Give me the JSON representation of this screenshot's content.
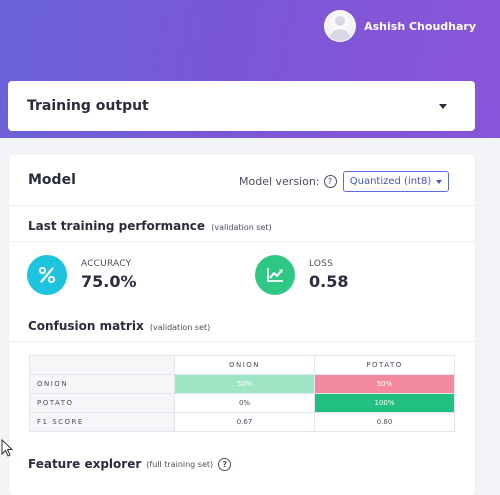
{
  "user": {
    "name": "Ashish Choudhary"
  },
  "training_output": {
    "title": "Training output"
  },
  "model": {
    "title": "Model",
    "version_label": "Model version:",
    "version_value": "Quantized (int8)"
  },
  "performance": {
    "title": "Last training performance",
    "note": "(validation set)",
    "accuracy": {
      "label": "ACCURACY",
      "value": "75.0%",
      "icon": "percent-icon",
      "color": "#1ec4dd"
    },
    "loss": {
      "label": "LOSS",
      "value": "0.58",
      "icon": "trend-chart-icon",
      "color": "#2ec784"
    }
  },
  "confusion": {
    "title": "Confusion matrix",
    "note": "(validation set)",
    "columns": [
      "ONION",
      "POTATO"
    ],
    "rows": [
      {
        "label": "ONION",
        "cells": [
          "50%",
          "50%"
        ]
      },
      {
        "label": "POTATO",
        "cells": [
          "0%",
          "100%"
        ]
      },
      {
        "label": "F1 SCORE",
        "cells": [
          "0.67",
          "0.80"
        ]
      }
    ],
    "colors": {
      "green_light": "#9de5c5",
      "pink": "#f2899f",
      "green_dark": "#22c080"
    }
  },
  "feature_explorer": {
    "title": "Feature explorer",
    "note": "(full training set)"
  }
}
